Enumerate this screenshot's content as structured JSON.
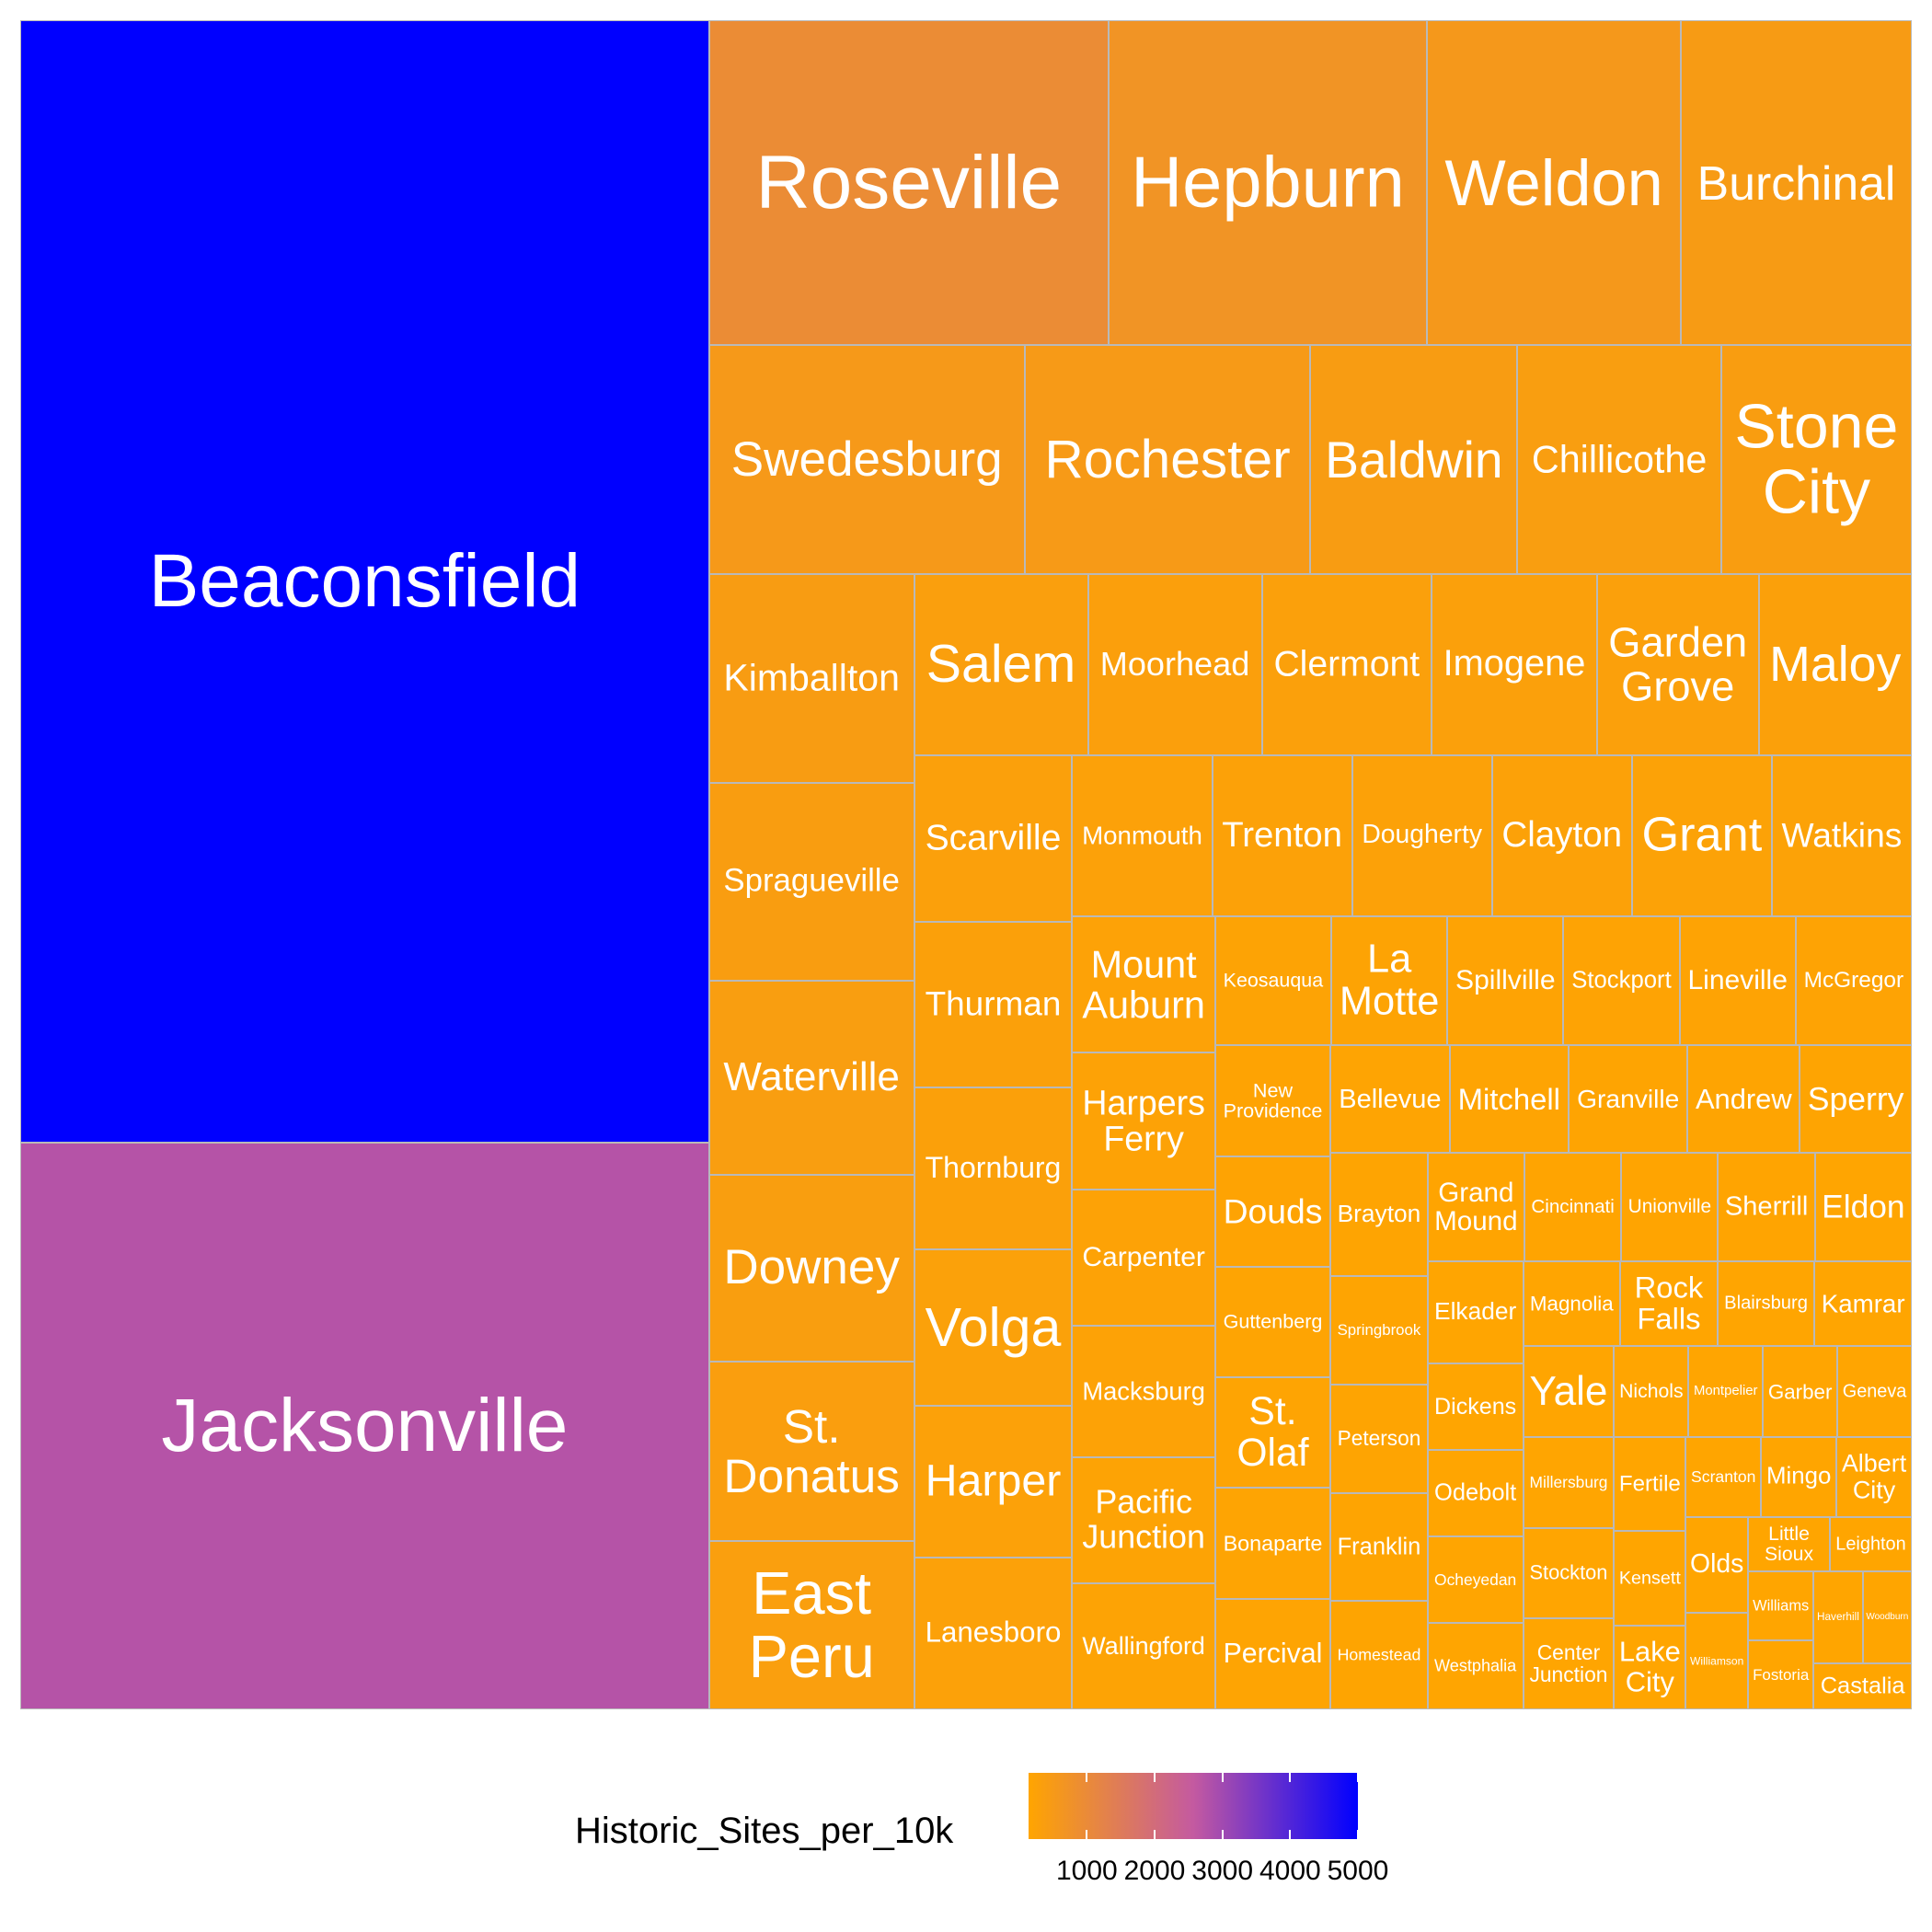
{
  "chart_data": {
    "type": "treemap",
    "title": "",
    "legend": {
      "title": "Historic_Sites_per_10k",
      "placement": "bottom",
      "range": [
        140,
        5000
      ],
      "ticks": [
        1000,
        2000,
        3000,
        4000,
        5000
      ],
      "colors": {
        "low": "#ffa500",
        "mid": "#c45aa0",
        "high": "#0000ff"
      }
    },
    "items": [
      {
        "label": "Beaconsfield",
        "size": 1030,
        "color_value": 5000
      },
      {
        "label": "Jacksonville",
        "size": 520,
        "color_value": 2750
      },
      {
        "label": "Roseville",
        "size": 173,
        "color_value": 950
      },
      {
        "label": "Hepburn",
        "size": 138,
        "color_value": 700
      },
      {
        "label": "Weldon",
        "size": 110,
        "color_value": 550
      },
      {
        "label": "Burchinal",
        "size": 100,
        "color_value": 450
      },
      {
        "label": "Swedesburg",
        "size": 96,
        "color_value": 520
      },
      {
        "label": "Rochester",
        "size": 87,
        "color_value": 490
      },
      {
        "label": "Baldwin",
        "size": 63,
        "color_value": 420
      },
      {
        "label": "Chillicothe",
        "size": 62,
        "color_value": 380
      },
      {
        "label": "Stone City",
        "size": 58,
        "color_value": 390
      },
      {
        "label": "Kimballton",
        "size": 57,
        "color_value": 420
      },
      {
        "label": "Spragueville",
        "size": 54,
        "color_value": 390
      },
      {
        "label": "Waterville",
        "size": 53,
        "color_value": 380
      },
      {
        "label": "Downey",
        "size": 51,
        "color_value": 370
      },
      {
        "label": "St. Donatus",
        "size": 49,
        "color_value": 360
      },
      {
        "label": "East Peru",
        "size": 46,
        "color_value": 350
      },
      {
        "label": "Salem",
        "size": 42,
        "color_value": 330
      },
      {
        "label": "Moorhead",
        "size": 42,
        "color_value": 320
      },
      {
        "label": "Clermont",
        "size": 41,
        "color_value": 310
      },
      {
        "label": "Imogene",
        "size": 40,
        "color_value": 300
      },
      {
        "label": "Garden Grove",
        "size": 39,
        "color_value": 300
      },
      {
        "label": "Maloy",
        "size": 37,
        "color_value": 290
      },
      {
        "label": "Scarville",
        "size": 35,
        "color_value": 300
      },
      {
        "label": "Thurman",
        "size": 35,
        "color_value": 295
      },
      {
        "label": "Thornburg",
        "size": 34,
        "color_value": 290
      },
      {
        "label": "Volga",
        "size": 33,
        "color_value": 285
      },
      {
        "label": "Harper",
        "size": 32,
        "color_value": 280
      },
      {
        "label": "Lanesboro",
        "size": 32,
        "color_value": 275
      },
      {
        "label": "Monmouth",
        "size": 30,
        "color_value": 270
      },
      {
        "label": "Trenton",
        "size": 30,
        "color_value": 265
      },
      {
        "label": "Dougherty",
        "size": 30,
        "color_value": 260
      },
      {
        "label": "Clayton",
        "size": 30,
        "color_value": 255
      },
      {
        "label": "Grant",
        "size": 30,
        "color_value": 250
      },
      {
        "label": "Watkins",
        "size": 30,
        "color_value": 245
      },
      {
        "label": "Mount Auburn",
        "size": 26,
        "color_value": 240
      },
      {
        "label": "Harpers Ferry",
        "size": 26,
        "color_value": 235
      },
      {
        "label": "Carpenter",
        "size": 26,
        "color_value": 230
      },
      {
        "label": "Macksburg",
        "size": 25,
        "color_value": 225
      },
      {
        "label": "Pacific Junction",
        "size": 24,
        "color_value": 220
      },
      {
        "label": "Wallingford",
        "size": 24,
        "color_value": 215
      },
      {
        "label": "Keosauqua",
        "size": 20,
        "color_value": 210
      },
      {
        "label": "La Motte",
        "size": 20,
        "color_value": 205
      },
      {
        "label": "Spillville",
        "size": 20,
        "color_value": 200
      },
      {
        "label": "Stockport",
        "size": 20,
        "color_value": 200
      },
      {
        "label": "Lineville",
        "size": 20,
        "color_value": 195
      },
      {
        "label": "McGregor",
        "size": 20,
        "color_value": 195
      },
      {
        "label": "New Providence",
        "size": 17,
        "color_value": 190
      },
      {
        "label": "Douds",
        "size": 17,
        "color_value": 190
      },
      {
        "label": "Guttenberg",
        "size": 17,
        "color_value": 185
      },
      {
        "label": "St. Olaf",
        "size": 17,
        "color_value": 185
      },
      {
        "label": "Bonaparte",
        "size": 17,
        "color_value": 180
      },
      {
        "label": "Percival",
        "size": 17,
        "color_value": 180
      },
      {
        "label": "Bellevue",
        "size": 17,
        "color_value": 180
      },
      {
        "label": "Mitchell",
        "size": 17,
        "color_value": 178
      },
      {
        "label": "Granville",
        "size": 17,
        "color_value": 176
      },
      {
        "label": "Andrew",
        "size": 16,
        "color_value": 174
      },
      {
        "label": "Sperry",
        "size": 16,
        "color_value": 172
      },
      {
        "label": "Brayton",
        "size": 16,
        "color_value": 170
      },
      {
        "label": "Springbrook",
        "size": 14,
        "color_value": 168
      },
      {
        "label": "Peterson",
        "size": 14,
        "color_value": 166
      },
      {
        "label": "Franklin",
        "size": 14,
        "color_value": 164
      },
      {
        "label": "Homestead",
        "size": 14,
        "color_value": 162
      },
      {
        "label": "Grand Mound",
        "size": 14,
        "color_value": 160
      },
      {
        "label": "Cincinnati",
        "size": 14,
        "color_value": 160
      },
      {
        "label": "Unionville",
        "size": 14,
        "color_value": 158
      },
      {
        "label": "Sherrill",
        "size": 14,
        "color_value": 158
      },
      {
        "label": "Eldon",
        "size": 14,
        "color_value": 156
      },
      {
        "label": "Elkader",
        "size": 13,
        "color_value": 156
      },
      {
        "label": "Dickens",
        "size": 11,
        "color_value": 155
      },
      {
        "label": "Odebolt",
        "size": 11,
        "color_value": 155
      },
      {
        "label": "Ocheyedan",
        "size": 11,
        "color_value": 154
      },
      {
        "label": "Westphalia",
        "size": 11,
        "color_value": 154
      },
      {
        "label": "Magnolia",
        "size": 11,
        "color_value": 153
      },
      {
        "label": "Rock Falls",
        "size": 11,
        "color_value": 153
      },
      {
        "label": "Blairsburg",
        "size": 11,
        "color_value": 152
      },
      {
        "label": "Kamrar",
        "size": 11,
        "color_value": 152
      },
      {
        "label": "Yale",
        "size": 11,
        "color_value": 151
      },
      {
        "label": "Millersburg",
        "size": 11,
        "color_value": 151
      },
      {
        "label": "Stockton",
        "size": 11,
        "color_value": 150
      },
      {
        "label": "Center Junction",
        "size": 11,
        "color_value": 150
      },
      {
        "label": "Nichols",
        "size": 9,
        "color_value": 149
      },
      {
        "label": "Montpelier",
        "size": 9,
        "color_value": 149
      },
      {
        "label": "Garber",
        "size": 9,
        "color_value": 148
      },
      {
        "label": "Geneva",
        "size": 9,
        "color_value": 148
      },
      {
        "label": "Fertile",
        "size": 9,
        "color_value": 147
      },
      {
        "label": "Kensett",
        "size": 9,
        "color_value": 147
      },
      {
        "label": "Lake City",
        "size": 8,
        "color_value": 146
      },
      {
        "label": "Scranton",
        "size": 8,
        "color_value": 146
      },
      {
        "label": "Mingo",
        "size": 8,
        "color_value": 145
      },
      {
        "label": "Albert City",
        "size": 8,
        "color_value": 145
      },
      {
        "label": "Olds",
        "size": 8,
        "color_value": 144
      },
      {
        "label": "Williamson",
        "size": 8,
        "color_value": 144
      },
      {
        "label": "Little Sioux",
        "size": 6,
        "color_value": 143
      },
      {
        "label": "Leighton",
        "size": 6,
        "color_value": 143
      },
      {
        "label": "Williams",
        "size": 6,
        "color_value": 142
      },
      {
        "label": "Fostoria",
        "size": 6,
        "color_value": 142
      },
      {
        "label": "Haverhill",
        "size": 6,
        "color_value": 141
      },
      {
        "label": "Woodburn",
        "size": 6,
        "color_value": 141
      },
      {
        "label": "Castalia",
        "size": 6,
        "color_value": 140
      }
    ]
  }
}
